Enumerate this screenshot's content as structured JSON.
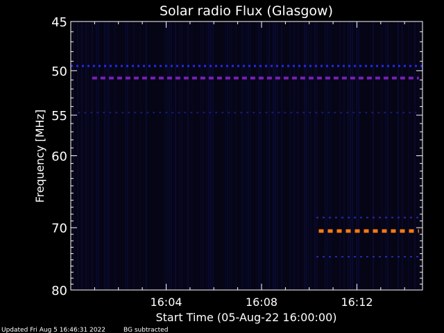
{
  "chart_data": {
    "type": "heatmap",
    "title": "Solar radio Flux (Glasgow)",
    "xlabel": "Start Time (05-Aug-22 16:00:00)",
    "ylabel": "Frequency [MHz]",
    "xlim_minutes": [
      0,
      14.75
    ],
    "ylim_mhz": [
      80,
      45
    ],
    "y_scale": "log",
    "x_tick_labels": [
      {
        "label": "16:04",
        "minute": 4
      },
      {
        "label": "16:08",
        "minute": 8
      },
      {
        "label": "16:12",
        "minute": 12
      }
    ],
    "y_tick_labels": [
      {
        "label": "45",
        "mhz": 45
      },
      {
        "label": "50",
        "mhz": 50
      },
      {
        "label": "55",
        "mhz": 55
      },
      {
        "label": "60",
        "mhz": 60
      },
      {
        "label": "70",
        "mhz": 70
      },
      {
        "label": "80",
        "mhz": 80
      }
    ],
    "series": [
      {
        "mhz": 49.5,
        "x_start": 0,
        "x_end": 14.75,
        "intensity": "low",
        "color": "#2828ee"
      },
      {
        "mhz": 50.8,
        "x_start": 0.9,
        "x_end": 14.6,
        "intensity": "medium",
        "color": "#7a1fb8"
      },
      {
        "mhz": 54.7,
        "x_start": 0.3,
        "x_end": 14.5,
        "intensity": "faint",
        "color": "#1a1a7a"
      },
      {
        "mhz": 68.5,
        "x_start": 10.3,
        "x_end": 14.75,
        "intensity": "faint",
        "color": "#2a2ab0"
      },
      {
        "mhz": 70.5,
        "x_start": 10.4,
        "x_end": 14.6,
        "intensity": "high",
        "color": "#ff7a10"
      },
      {
        "mhz": 74.5,
        "x_start": 10.3,
        "x_end": 14.75,
        "intensity": "faint",
        "color": "#2a2ab0"
      }
    ],
    "background_color": "#050516",
    "grid": false
  },
  "footer": {
    "updated": "Updated Fri Aug  5 16:46:31 2022",
    "note": "BG subtracted"
  }
}
